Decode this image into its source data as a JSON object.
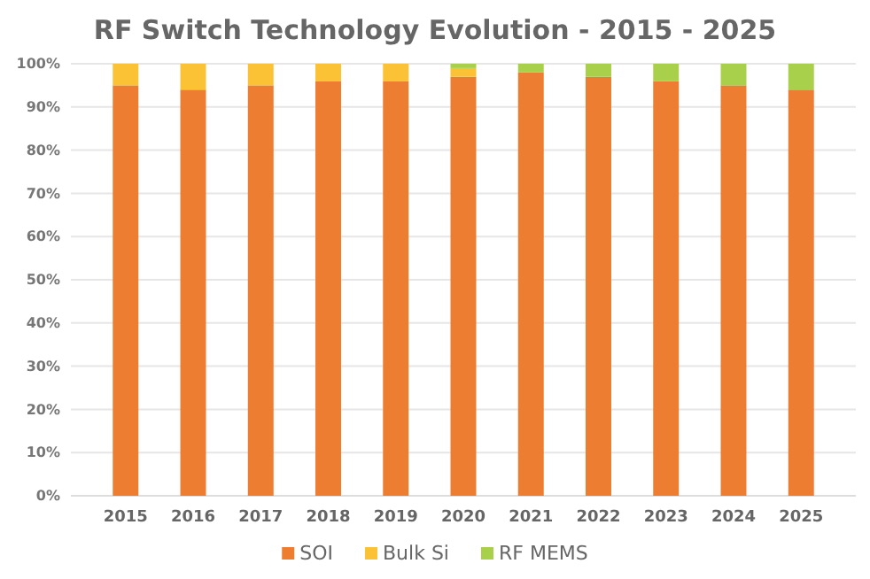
{
  "chart_data": {
    "type": "bar",
    "title": "RF Switch Technology Evolution - 2015 - 2025",
    "stacked": true,
    "categories": [
      "2015",
      "2016",
      "2017",
      "2018",
      "2019",
      "2020",
      "2021",
      "2022",
      "2023",
      "2024",
      "2025"
    ],
    "series": [
      {
        "name": "SOI",
        "color": "#ed7d31",
        "values": [
          95,
          94,
          95,
          96,
          96,
          97,
          98,
          97,
          96,
          95,
          94
        ]
      },
      {
        "name": "Bulk Si",
        "color": "#fcc236",
        "values": [
          5,
          6,
          5,
          4,
          4,
          2,
          0,
          0,
          0,
          0,
          0
        ]
      },
      {
        "name": "RF MEMS",
        "color": "#a9d04a",
        "values": [
          0,
          0,
          0,
          0,
          0,
          1,
          2,
          3,
          4,
          5,
          6
        ]
      }
    ],
    "ylim": [
      0,
      100
    ],
    "yticks": [
      {
        "value": 0,
        "label": "0%"
      },
      {
        "value": 10,
        "label": "10%"
      },
      {
        "value": 20,
        "label": "20%"
      },
      {
        "value": 30,
        "label": "30%"
      },
      {
        "value": 40,
        "label": "40%"
      },
      {
        "value": 50,
        "label": "50%"
      },
      {
        "value": 60,
        "label": "60%"
      },
      {
        "value": 70,
        "label": "70%"
      },
      {
        "value": 80,
        "label": "80%"
      },
      {
        "value": 90,
        "label": "90%"
      },
      {
        "value": 100,
        "label": "100%"
      }
    ],
    "grid": "y",
    "legend": "bottom"
  }
}
